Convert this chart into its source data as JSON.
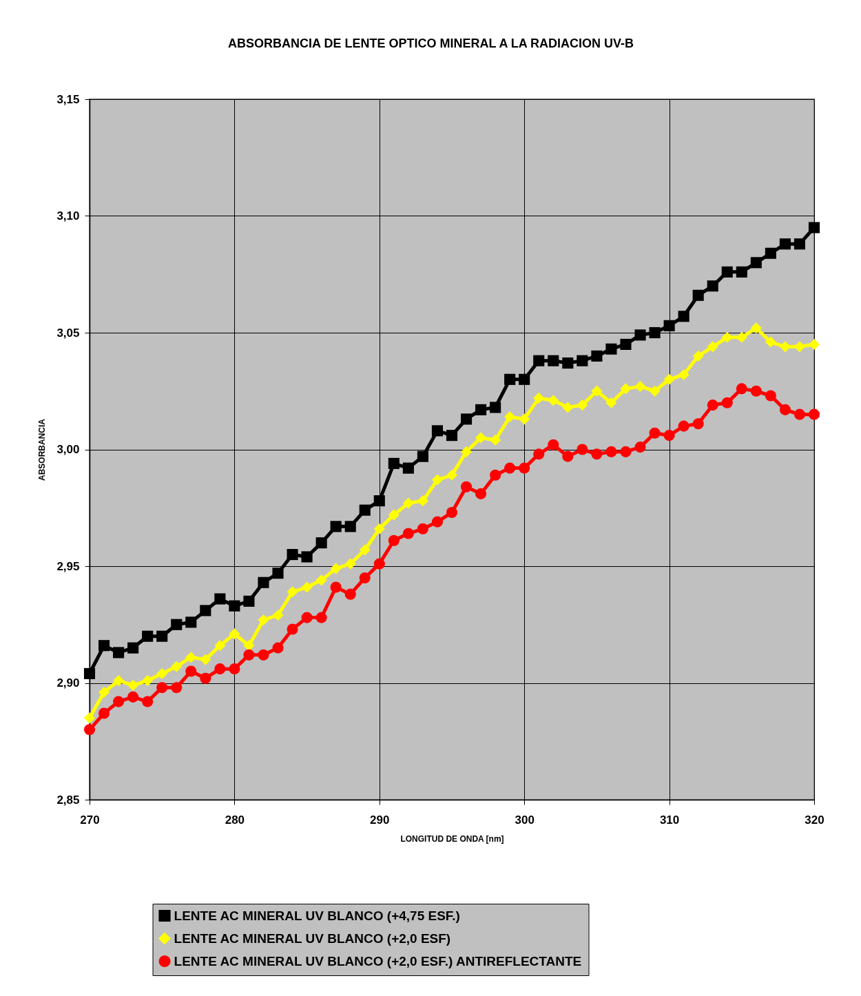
{
  "chart_data": {
    "type": "line",
    "title": "ABSORBANCIA DE LENTE OPTICO MINERAL  A LA RADIACION UV-B",
    "xlabel": "LONGITUD DE ONDA [nm]",
    "ylabel": "ABSORBANCIA",
    "x": [
      270,
      271,
      272,
      273,
      274,
      275,
      276,
      277,
      278,
      279,
      280,
      281,
      282,
      283,
      284,
      285,
      286,
      287,
      288,
      289,
      290,
      291,
      292,
      293,
      294,
      295,
      296,
      297,
      298,
      299,
      300,
      301,
      302,
      303,
      304,
      305,
      306,
      307,
      308,
      309,
      310,
      311,
      312,
      313,
      314,
      315,
      316,
      317,
      318,
      319,
      320
    ],
    "xlim": [
      270,
      320
    ],
    "xticks": [
      270,
      280,
      290,
      300,
      310,
      320
    ],
    "ylim": [
      2.85,
      3.15
    ],
    "yticks": [
      {
        "value": 2.85,
        "label": "2,85"
      },
      {
        "value": 2.9,
        "label": "2,90"
      },
      {
        "value": 2.95,
        "label": "2,95"
      },
      {
        "value": 3.0,
        "label": "3,00"
      },
      {
        "value": 3.05,
        "label": "3,05"
      },
      {
        "value": 3.1,
        "label": "3,10"
      },
      {
        "value": 3.15,
        "label": "3,15"
      }
    ],
    "grid": true,
    "legend": "bottom",
    "line_style": "solid",
    "series": [
      {
        "name": "LENTE AC MINERAL UV BLANCO (+4,75 ESF.)",
        "color": "#000000",
        "marker": "square",
        "values": [
          2.904,
          2.916,
          2.913,
          2.915,
          2.92,
          2.92,
          2.925,
          2.926,
          2.931,
          2.936,
          2.933,
          2.935,
          2.943,
          2.947,
          2.955,
          2.954,
          2.96,
          2.967,
          2.967,
          2.974,
          2.978,
          2.994,
          2.992,
          2.997,
          3.008,
          3.006,
          3.013,
          3.017,
          3.018,
          3.03,
          3.03,
          3.038,
          3.038,
          3.037,
          3.038,
          3.04,
          3.043,
          3.045,
          3.049,
          3.05,
          3.053,
          3.057,
          3.066,
          3.07,
          3.076,
          3.076,
          3.08,
          3.084,
          3.088,
          3.088,
          3.095
        ]
      },
      {
        "name": "LENTE AC MINERAL UV BLANCO (+2,0 ESF)",
        "color": "#ffff00",
        "marker": "diamond",
        "values": [
          2.885,
          2.896,
          2.901,
          2.899,
          2.901,
          2.904,
          2.907,
          2.911,
          2.91,
          2.916,
          2.921,
          2.916,
          2.927,
          2.929,
          2.939,
          2.941,
          2.944,
          2.949,
          2.951,
          2.957,
          2.966,
          2.972,
          2.977,
          2.978,
          2.987,
          2.989,
          2.999,
          3.005,
          3.004,
          3.014,
          3.013,
          3.022,
          3.021,
          3.018,
          3.019,
          3.025,
          3.02,
          3.026,
          3.027,
          3.025,
          3.03,
          3.032,
          3.04,
          3.044,
          3.048,
          3.048,
          3.052,
          3.046,
          3.044,
          3.044,
          3.045
        ]
      },
      {
        "name": "LENTE AC MINERAL UV BLANCO (+2,0 ESF.) ANTIREFLECTANTE",
        "color": "#ff0000",
        "marker": "circle",
        "values": [
          2.88,
          2.887,
          2.892,
          2.894,
          2.892,
          2.898,
          2.898,
          2.905,
          2.902,
          2.906,
          2.906,
          2.912,
          2.912,
          2.915,
          2.923,
          2.928,
          2.928,
          2.941,
          2.938,
          2.945,
          2.951,
          2.961,
          2.964,
          2.966,
          2.969,
          2.973,
          2.984,
          2.981,
          2.989,
          2.992,
          2.992,
          2.998,
          3.002,
          2.997,
          3.0,
          2.998,
          2.999,
          2.999,
          3.001,
          3.007,
          3.006,
          3.01,
          3.011,
          3.019,
          3.02,
          3.026,
          3.025,
          3.023,
          3.017,
          3.015,
          3.015
        ]
      }
    ]
  }
}
